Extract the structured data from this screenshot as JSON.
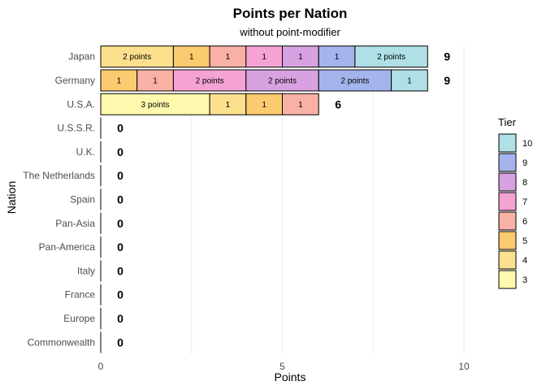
{
  "chart_data": {
    "type": "bar",
    "orientation": "horizontal",
    "stacked": true,
    "title": "Points per Nation",
    "subtitle": "without point-modifier",
    "xlabel": "Points",
    "ylabel": "Nation",
    "xlim": [
      0,
      10
    ],
    "x_ticks": [
      "0",
      "5",
      "10"
    ],
    "grid": "vertical major gridlines",
    "legend": {
      "title": "Tier",
      "placement": "right",
      "entries": [
        {
          "label": "10",
          "color": "#b0e0e6"
        },
        {
          "label": "9",
          "color": "#a4b4ec"
        },
        {
          "label": "8",
          "color": "#d8a2e2"
        },
        {
          "label": "7",
          "color": "#f5a3d3"
        },
        {
          "label": "6",
          "color": "#f9b1a6"
        },
        {
          "label": "5",
          "color": "#fccb6f"
        },
        {
          "label": "4",
          "color": "#fde08e"
        },
        {
          "label": "3",
          "color": "#fff9ad"
        }
      ]
    },
    "categories": [
      "Japan",
      "Germany",
      "U.S.A.",
      "U.S.S.R.",
      "U.K.",
      "The Netherlands",
      "Spain",
      "Pan-Asia",
      "Pan-America",
      "Italy",
      "France",
      "Europe",
      "Commonwealth"
    ],
    "totals": [
      9,
      9,
      6,
      0,
      0,
      0,
      0,
      0,
      0,
      0,
      0,
      0,
      0
    ],
    "total_labels": [
      "9",
      "9",
      "6",
      "0",
      "0",
      "0",
      "0",
      "0",
      "0",
      "0",
      "0",
      "0",
      "0"
    ],
    "segments": [
      [
        {
          "tier": "4",
          "value": 2,
          "label": "2 points"
        },
        {
          "tier": "5",
          "value": 1,
          "label": "1"
        },
        {
          "tier": "6",
          "value": 1,
          "label": "1"
        },
        {
          "tier": "7",
          "value": 1,
          "label": "1"
        },
        {
          "tier": "8",
          "value": 1,
          "label": "1"
        },
        {
          "tier": "9",
          "value": 1,
          "label": "1"
        },
        {
          "tier": "10",
          "value": 2,
          "label": "2 points"
        }
      ],
      [
        {
          "tier": "5",
          "value": 1,
          "label": "1"
        },
        {
          "tier": "6",
          "value": 1,
          "label": "1"
        },
        {
          "tier": "7",
          "value": 2,
          "label": "2 points"
        },
        {
          "tier": "8",
          "value": 2,
          "label": "2 points"
        },
        {
          "tier": "9",
          "value": 2,
          "label": "2 points"
        },
        {
          "tier": "10",
          "value": 1,
          "label": "1"
        }
      ],
      [
        {
          "tier": "3",
          "value": 3,
          "label": "3 points"
        },
        {
          "tier": "4",
          "value": 1,
          "label": "1"
        },
        {
          "tier": "5",
          "value": 1,
          "label": "1"
        },
        {
          "tier": "6",
          "value": 1,
          "label": "1"
        }
      ],
      [],
      [],
      [],
      [],
      [],
      [],
      [],
      [],
      [],
      []
    ]
  }
}
